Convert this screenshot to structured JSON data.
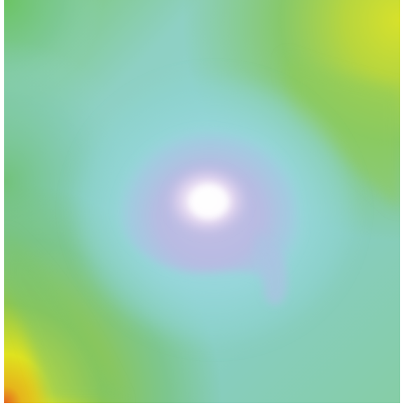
{
  "image": {
    "kind": "false-color field",
    "colors": {
      "hot_core": "#fbf7fb",
      "lavender": "#c6bfe2",
      "violet_haze": "#b8b9e2",
      "cyan": "#8fd5d6",
      "aqua_green": "#88cdb6",
      "green": "#79c06b",
      "lime": "#a8d24f",
      "yellow": "#e2e51a",
      "orange": "#e27a1f"
    }
  }
}
